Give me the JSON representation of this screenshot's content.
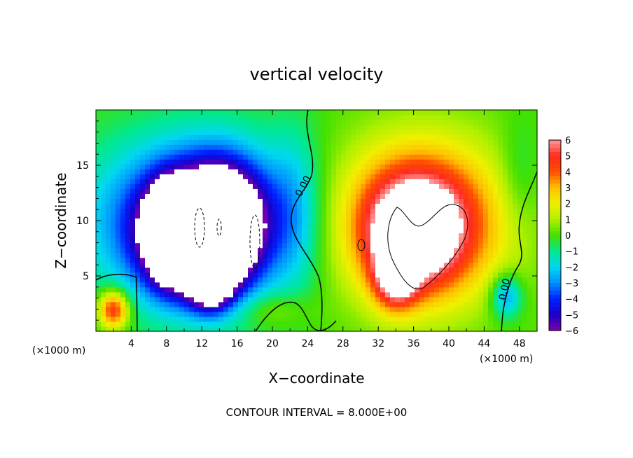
{
  "chart_data": {
    "type": "heatmap",
    "title": "vertical velocity",
    "xlabel": "X−coordinate",
    "ylabel": "Z−coordinate",
    "x_unit_left": "(×1000 m)",
    "x_unit_right": "(×1000 m)",
    "footer": "CONTOUR INTERVAL = 8.000E+00",
    "xlim": [
      0,
      50
    ],
    "ylim": [
      0,
      20
    ],
    "x_ticks": [
      "4",
      "8",
      "12",
      "16",
      "20",
      "24",
      "28",
      "32",
      "36",
      "40",
      "44",
      "48"
    ],
    "y_ticks": [
      "5",
      "10",
      "15"
    ],
    "colorbar": {
      "range": [
        -6,
        6
      ],
      "labels": [
        "6",
        "5",
        "4",
        "3",
        "2",
        "1",
        "0",
        "−1",
        "−2",
        "−3",
        "−4",
        "−5",
        "−6"
      ]
    },
    "contour_labels": [
      "0.00",
      "0.00"
    ],
    "blobs": [
      {
        "x": 22.5,
        "z": 11.2,
        "rx": 3.6,
        "rz": 9.5,
        "v": -1.5
      },
      {
        "x": 11,
        "z": 10,
        "rx": 14,
        "rz": 9,
        "v": -5.4
      },
      {
        "x": 10,
        "z": 8.5,
        "rx": 6,
        "rz": 6,
        "v": -6.5
      },
      {
        "x": 14.5,
        "z": 9.5,
        "rx": 5.5,
        "rz": 6.5,
        "v": -8
      },
      {
        "x": 8,
        "z": 9,
        "rx": 2.5,
        "rz": 4.5,
        "v": -7
      },
      {
        "x": 13,
        "z": 4.5,
        "rx": 3,
        "rz": 3,
        "v": -6
      },
      {
        "x": 2,
        "z": 2,
        "rx": 2.2,
        "rz": 2.2,
        "v": 5.2
      },
      {
        "x": 37,
        "z": 10,
        "rx": 12,
        "rz": 9,
        "v": 5.2
      },
      {
        "x": 36,
        "z": 9,
        "rx": 7,
        "rz": 6.5,
        "v": 5
      },
      {
        "x": 34,
        "z": 5,
        "rx": 3,
        "rz": 3.5,
        "v": 5
      },
      {
        "x": 46.5,
        "z": 3.2,
        "rx": 2.2,
        "rz": 2.5,
        "v": -3.2
      },
      {
        "x": 48,
        "z": 14,
        "rx": 3,
        "rz": 6,
        "v": -1
      },
      {
        "x": 20,
        "z": 2,
        "rx": 5,
        "rz": 2,
        "v": 1.2
      }
    ]
  }
}
